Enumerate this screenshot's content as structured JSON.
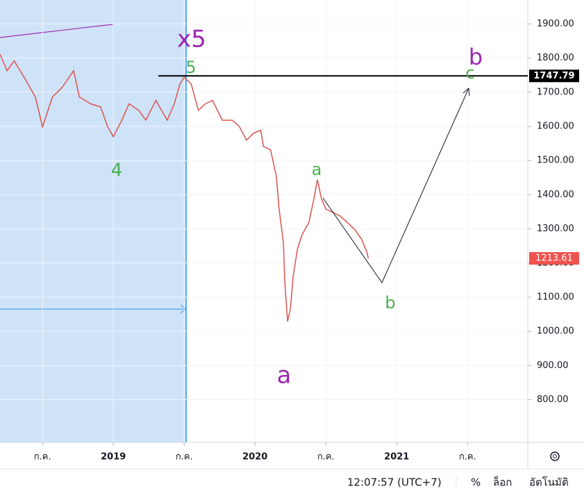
{
  "chart_data": {
    "type": "line",
    "x": [
      2018.2,
      2018.25,
      2018.3,
      2018.37,
      2018.45,
      2018.5,
      2018.57,
      2018.64,
      2018.72,
      2018.76,
      2018.84,
      2018.91,
      2018.96,
      2019.0,
      2019.06,
      2019.11,
      2019.18,
      2019.23,
      2019.3,
      2019.38,
      2019.43,
      2019.47,
      2019.5,
      2019.55,
      2019.6,
      2019.65,
      2019.7,
      2019.77,
      2019.84,
      2019.89,
      2019.94,
      2019.99,
      2020.04,
      2020.06,
      2020.11,
      2020.15,
      2020.17,
      2020.2,
      2020.21,
      2020.23,
      2020.25,
      2020.27,
      2020.3,
      2020.33,
      2020.38,
      2020.42,
      2020.44,
      2020.47,
      2020.5,
      2020.55,
      2020.6,
      2020.65,
      2020.7,
      2020.75,
      2020.79,
      2020.8
    ],
    "series": [
      {
        "color": "#d9534f",
        "values": [
          1811,
          1763,
          1792,
          1744,
          1686,
          1599,
          1686,
          1715,
          1763,
          1686,
          1666,
          1657,
          1599,
          1570,
          1618,
          1666,
          1647,
          1618,
          1676,
          1618,
          1666,
          1724,
          1744,
          1724,
          1647,
          1666,
          1676,
          1618,
          1618,
          1599,
          1560,
          1580,
          1589,
          1541,
          1531,
          1454,
          1358,
          1261,
          1145,
          1029,
          1068,
          1164,
          1242,
          1281,
          1319,
          1396,
          1444,
          1387,
          1358,
          1348,
          1338,
          1319,
          1300,
          1271,
          1232,
          1213.61
        ]
      }
    ],
    "xlim": [
      2018.2,
      2021.925
    ],
    "xticks": [
      {
        "value": 2018.5,
        "label": "ก.ค."
      },
      2019,
      {
        "value": 2019.5,
        "label": "ก.ค."
      },
      2020,
      {
        "value": 2020.5,
        "label": "ก.ค."
      },
      2021,
      {
        "value": 2021.5,
        "label": "ก.ค."
      }
    ],
    "ylim": [
      675,
      1970
    ],
    "yticks": [
      {
        "value": 800,
        "label": "800.00"
      },
      {
        "value": 900,
        "label": "900.00"
      },
      {
        "value": 1000,
        "label": "1000.00"
      },
      {
        "value": 1100,
        "label": "1100.00"
      },
      {
        "value": 1200,
        "label": "1200.00"
      },
      {
        "value": 1300,
        "label": "1300.00"
      },
      {
        "value": 1400,
        "label": "1400.00"
      },
      {
        "value": 1500,
        "label": "1500.00"
      },
      {
        "value": 1600,
        "label": "1600.00"
      },
      {
        "value": 1700,
        "label": "1700.00"
      },
      {
        "value": 1800,
        "label": "1800.00"
      },
      {
        "value": 1900,
        "label": "1900.00"
      }
    ],
    "grid": true,
    "level_line": 1747.79,
    "last_price": 1213.61,
    "annotations": [
      {
        "text": "x5",
        "color": "#9c27b0"
      },
      {
        "text": "5",
        "color": "#4caf50"
      },
      {
        "text": "4",
        "color": "#4caf50"
      },
      {
        "text": "a",
        "color": "#4caf50"
      },
      {
        "text": "a",
        "color": "#9c27b0"
      },
      {
        "text": "b",
        "color": "#4caf50"
      },
      {
        "text": "c",
        "color": "#4caf50"
      },
      {
        "text": "b",
        "color": "#9c27b0"
      }
    ]
  },
  "toolbar": {
    "time": "12:07:57 (UTC+7)",
    "percent": "%",
    "log": "ล็อก",
    "auto": "อัตโนมัติ"
  }
}
